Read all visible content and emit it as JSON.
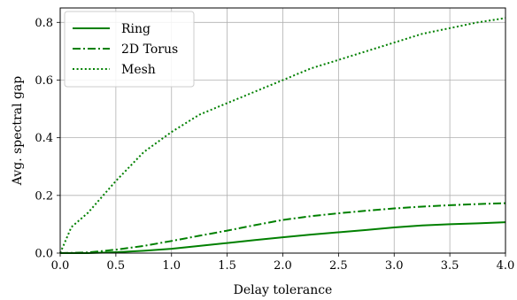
{
  "chart_data": {
    "type": "line",
    "xlabel": "Delay tolerance",
    "ylabel": "Avg. spectral gap",
    "xlim": [
      0.0,
      4.0
    ],
    "ylim": [
      0.0,
      0.85
    ],
    "xticks": [
      0.0,
      0.5,
      1.0,
      1.5,
      2.0,
      2.5,
      3.0,
      3.5,
      4.0
    ],
    "xtick_labels": [
      "0.0",
      "0.5",
      "1.0",
      "1.5",
      "2.0",
      "2.5",
      "3.0",
      "3.5",
      "4.0"
    ],
    "yticks": [
      0.0,
      0.2,
      0.4,
      0.6,
      0.8
    ],
    "ytick_labels": [
      "0.0",
      "0.2",
      "0.4",
      "0.6",
      "0.8"
    ],
    "grid": true,
    "legend_position": "top-left",
    "color": "#008000",
    "series": [
      {
        "name": "Ring",
        "style": "solid",
        "x": [
          0.0,
          0.25,
          0.5,
          0.75,
          1.0,
          1.25,
          1.5,
          1.75,
          2.0,
          2.25,
          2.5,
          2.75,
          3.0,
          3.25,
          3.5,
          3.75,
          4.0
        ],
        "y": [
          0.0,
          0.0,
          0.003,
          0.008,
          0.015,
          0.025,
          0.035,
          0.045,
          0.055,
          0.064,
          0.072,
          0.08,
          0.089,
          0.096,
          0.1,
          0.103,
          0.107
        ]
      },
      {
        "name": "2D Torus",
        "style": "dashdot",
        "x": [
          0.0,
          0.25,
          0.5,
          0.75,
          1.0,
          1.25,
          1.5,
          1.75,
          2.0,
          2.25,
          2.5,
          2.75,
          3.0,
          3.25,
          3.5,
          3.75,
          4.0
        ],
        "y": [
          0.0,
          0.002,
          0.012,
          0.025,
          0.042,
          0.06,
          0.078,
          0.097,
          0.115,
          0.128,
          0.138,
          0.147,
          0.155,
          0.161,
          0.166,
          0.17,
          0.173
        ]
      },
      {
        "name": "Mesh",
        "style": "dotted",
        "x": [
          0.0,
          0.1,
          0.25,
          0.5,
          0.75,
          1.0,
          1.25,
          1.5,
          1.75,
          2.0,
          2.25,
          2.5,
          2.75,
          3.0,
          3.25,
          3.5,
          3.75,
          4.0
        ],
        "y": [
          0.0,
          0.09,
          0.14,
          0.25,
          0.35,
          0.42,
          0.48,
          0.52,
          0.56,
          0.6,
          0.64,
          0.67,
          0.7,
          0.73,
          0.76,
          0.78,
          0.8,
          0.815
        ]
      }
    ]
  }
}
